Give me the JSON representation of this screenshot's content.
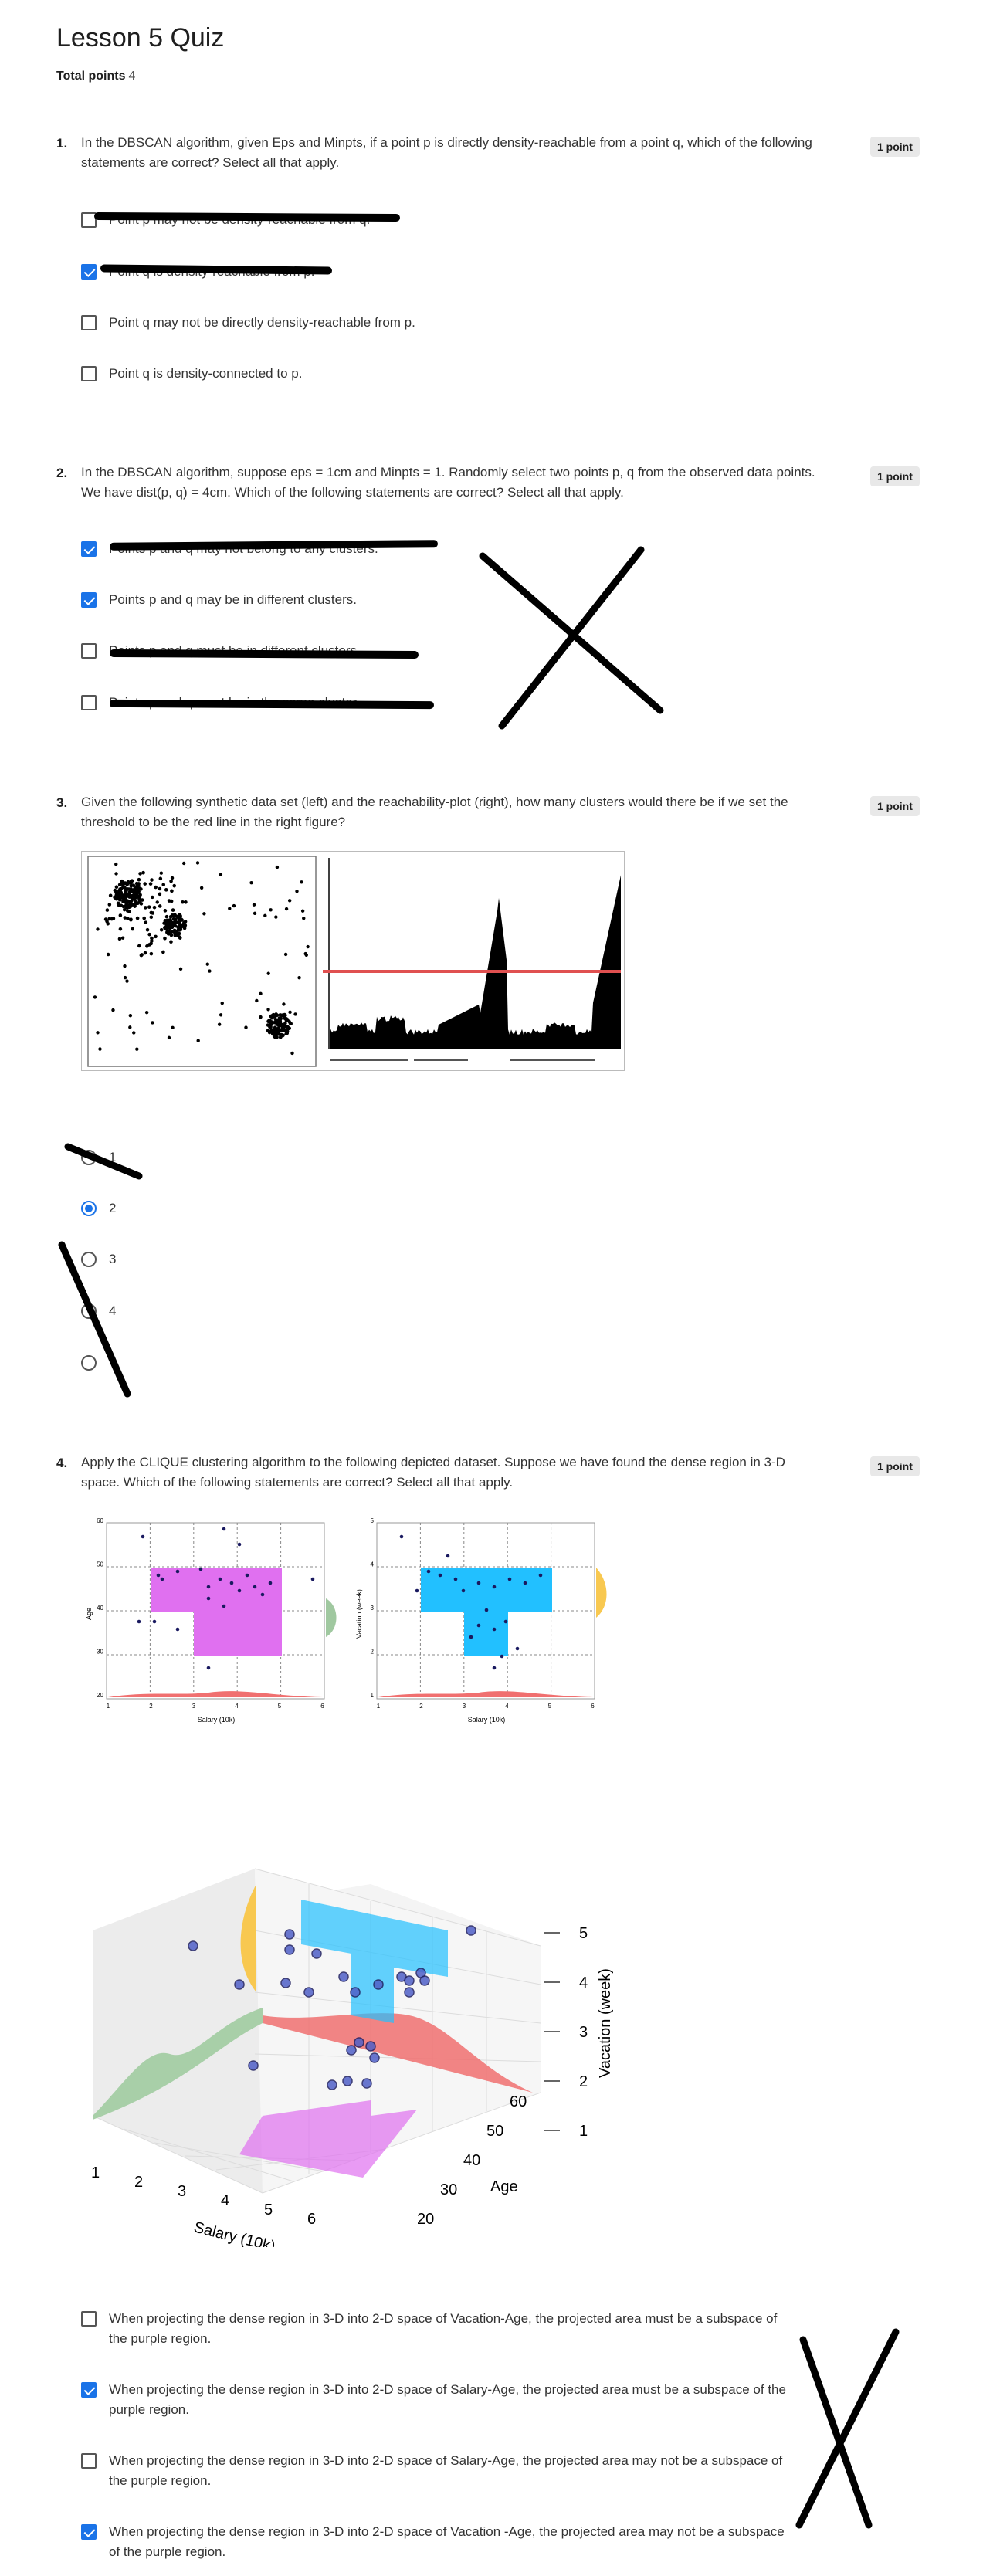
{
  "quiz": {
    "title": "Lesson 5 Quiz",
    "total_label": "Total points",
    "total_value": "4"
  },
  "questions": [
    {
      "number": "1.",
      "text": "In the DBSCAN algorithm, given Eps and Minpts, if a point p is directly density-reachable from a point q, which of the following statements are correct? Select all that apply.",
      "points": "1 point",
      "type": "checkbox",
      "options": [
        {
          "label": "Point p may not be density-reachable from q.",
          "checked": false
        },
        {
          "label": "Point q is density-reachable from p.",
          "checked": true
        },
        {
          "label": "Point q may not be directly density-reachable from p.",
          "checked": false
        },
        {
          "label": "Point q is density-connected to p.",
          "checked": false
        }
      ]
    },
    {
      "number": "2.",
      "text": "In the DBSCAN algorithm, suppose eps = 1cm and Minpts = 1. Randomly select two points p, q from the observed data points. We have dist(p, q) = 4cm. Which of the following statements are correct? Select all that apply.",
      "points": "1 point",
      "type": "checkbox",
      "options": [
        {
          "label": "Points p and q may not belong to any clusters.",
          "checked": true
        },
        {
          "label": "Points p and q may be in different clusters.",
          "checked": true
        },
        {
          "label": "Points p and q must be in different clusters.",
          "checked": false
        },
        {
          "label": "Points p and q must be in the same cluster.",
          "checked": false
        }
      ]
    },
    {
      "number": "3.",
      "text": "Given the following synthetic data set (left) and the reachability-plot (right), how many clusters would there be if we set the threshold to be the red line in the right figure?",
      "points": "1 point",
      "type": "radio",
      "options": [
        {
          "label": "1",
          "checked": false
        },
        {
          "label": "2",
          "checked": true
        },
        {
          "label": "3",
          "checked": false
        },
        {
          "label": "4",
          "checked": false
        },
        {
          "label": "",
          "checked": false
        }
      ]
    },
    {
      "number": "4.",
      "text": "Apply the CLIQUE clustering algorithm to the following depicted dataset. Suppose we have found the dense region in 3-D space. Which of the following statements are correct? Select all that apply.",
      "points": "1 point",
      "type": "checkbox",
      "options": [
        {
          "label": "When projecting the dense region in 3-D into 2-D space of Vacation-Age, the projected area must be a subspace of the purple region.",
          "checked": false
        },
        {
          "label": "When projecting the dense region in 3-D into 2-D space of Salary-Age, the projected area must be a subspace of the purple region.",
          "checked": true
        },
        {
          "label": "When projecting the dense region in 3-D into 2-D space of Salary-Age, the projected area may not be a subspace of the purple region.",
          "checked": false
        },
        {
          "label": "When projecting the dense region in 3-D into 2-D space of Vacation -Age, the projected area may not be a subspace of the purple region.",
          "checked": true
        }
      ]
    }
  ],
  "figures": {
    "clique_left": {
      "xlabel": "Salary (10k)",
      "ylabel": "Age",
      "xticks": [
        "1",
        "2",
        "3",
        "4",
        "5",
        "6"
      ],
      "yticks": [
        "20",
        "30",
        "40",
        "50",
        "60"
      ]
    },
    "clique_right": {
      "xlabel": "Salary (10k)",
      "ylabel": "Vacation (week)",
      "xticks": [
        "1",
        "2",
        "3",
        "4",
        "5",
        "6"
      ],
      "yticks": [
        "1",
        "2",
        "3",
        "4",
        "5"
      ]
    },
    "clique_3d": {
      "xlabel": "Salary (10k)",
      "ylabel": "Age",
      "zlabel": "Vacation (week)",
      "xticks": [
        "1",
        "2",
        "3",
        "4",
        "5",
        "6"
      ],
      "yticks": [
        "20",
        "30",
        "40",
        "50",
        "60"
      ],
      "zticks": [
        "1",
        "2",
        "3",
        "4",
        "5"
      ]
    },
    "colors": {
      "accent": "#1a73e8",
      "purple_region": "#e070f0",
      "blue_region": "#22c0ff",
      "red_threshold": "#e05050"
    }
  }
}
